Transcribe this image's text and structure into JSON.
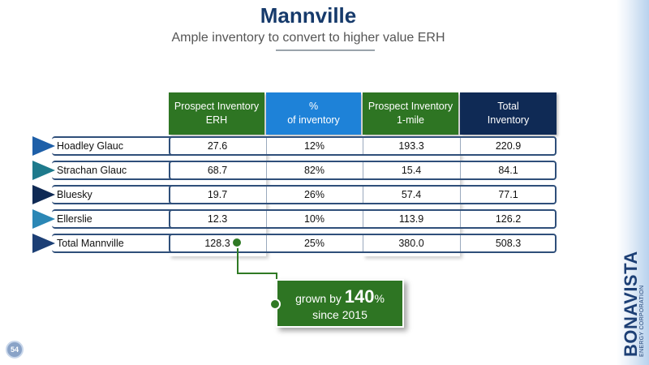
{
  "title": "Mannville",
  "subtitle": "Ample inventory to convert to higher value ERH",
  "table": {
    "headers": [
      {
        "line1": "Prospect Inventory",
        "line2": "ERH",
        "color": "#2E7523"
      },
      {
        "line1": "%",
        "line2": "of inventory",
        "color": "#1E82D8"
      },
      {
        "line1": "Prospect Inventory",
        "line2": "1-mile",
        "color": "#2E7523"
      },
      {
        "line1": "Total",
        "line2": "Inventory",
        "color": "#0F2A55"
      }
    ],
    "rows": [
      {
        "label": "Hoadley Glauc",
        "values": [
          "27.6",
          "12%",
          "193.3",
          "220.9"
        ],
        "arrow_color": "#1E5FA8"
      },
      {
        "label": "Strachan Glauc",
        "values": [
          "68.7",
          "82%",
          "15.4",
          "84.1"
        ],
        "arrow_color": "#1E7A8C"
      },
      {
        "label": "Bluesky",
        "values": [
          "19.7",
          "26%",
          "57.4",
          "77.1"
        ],
        "arrow_color": "#0F2A55"
      },
      {
        "label": "Ellerslie",
        "values": [
          "12.3",
          "10%",
          "113.9",
          "126.2"
        ],
        "arrow_color": "#2B87B5"
      },
      {
        "label": "Total Mannville",
        "values": [
          "128.3",
          "25%",
          "380.0",
          "508.3"
        ],
        "arrow_color": "#1C3F75"
      }
    ]
  },
  "callout": {
    "prefix": "grown by",
    "value": "140",
    "unit": "%",
    "suffix": "since 2015"
  },
  "page_number": "54",
  "brand": {
    "name": "BONAVISTA",
    "tagline": "ENERGY CORPORATION"
  }
}
